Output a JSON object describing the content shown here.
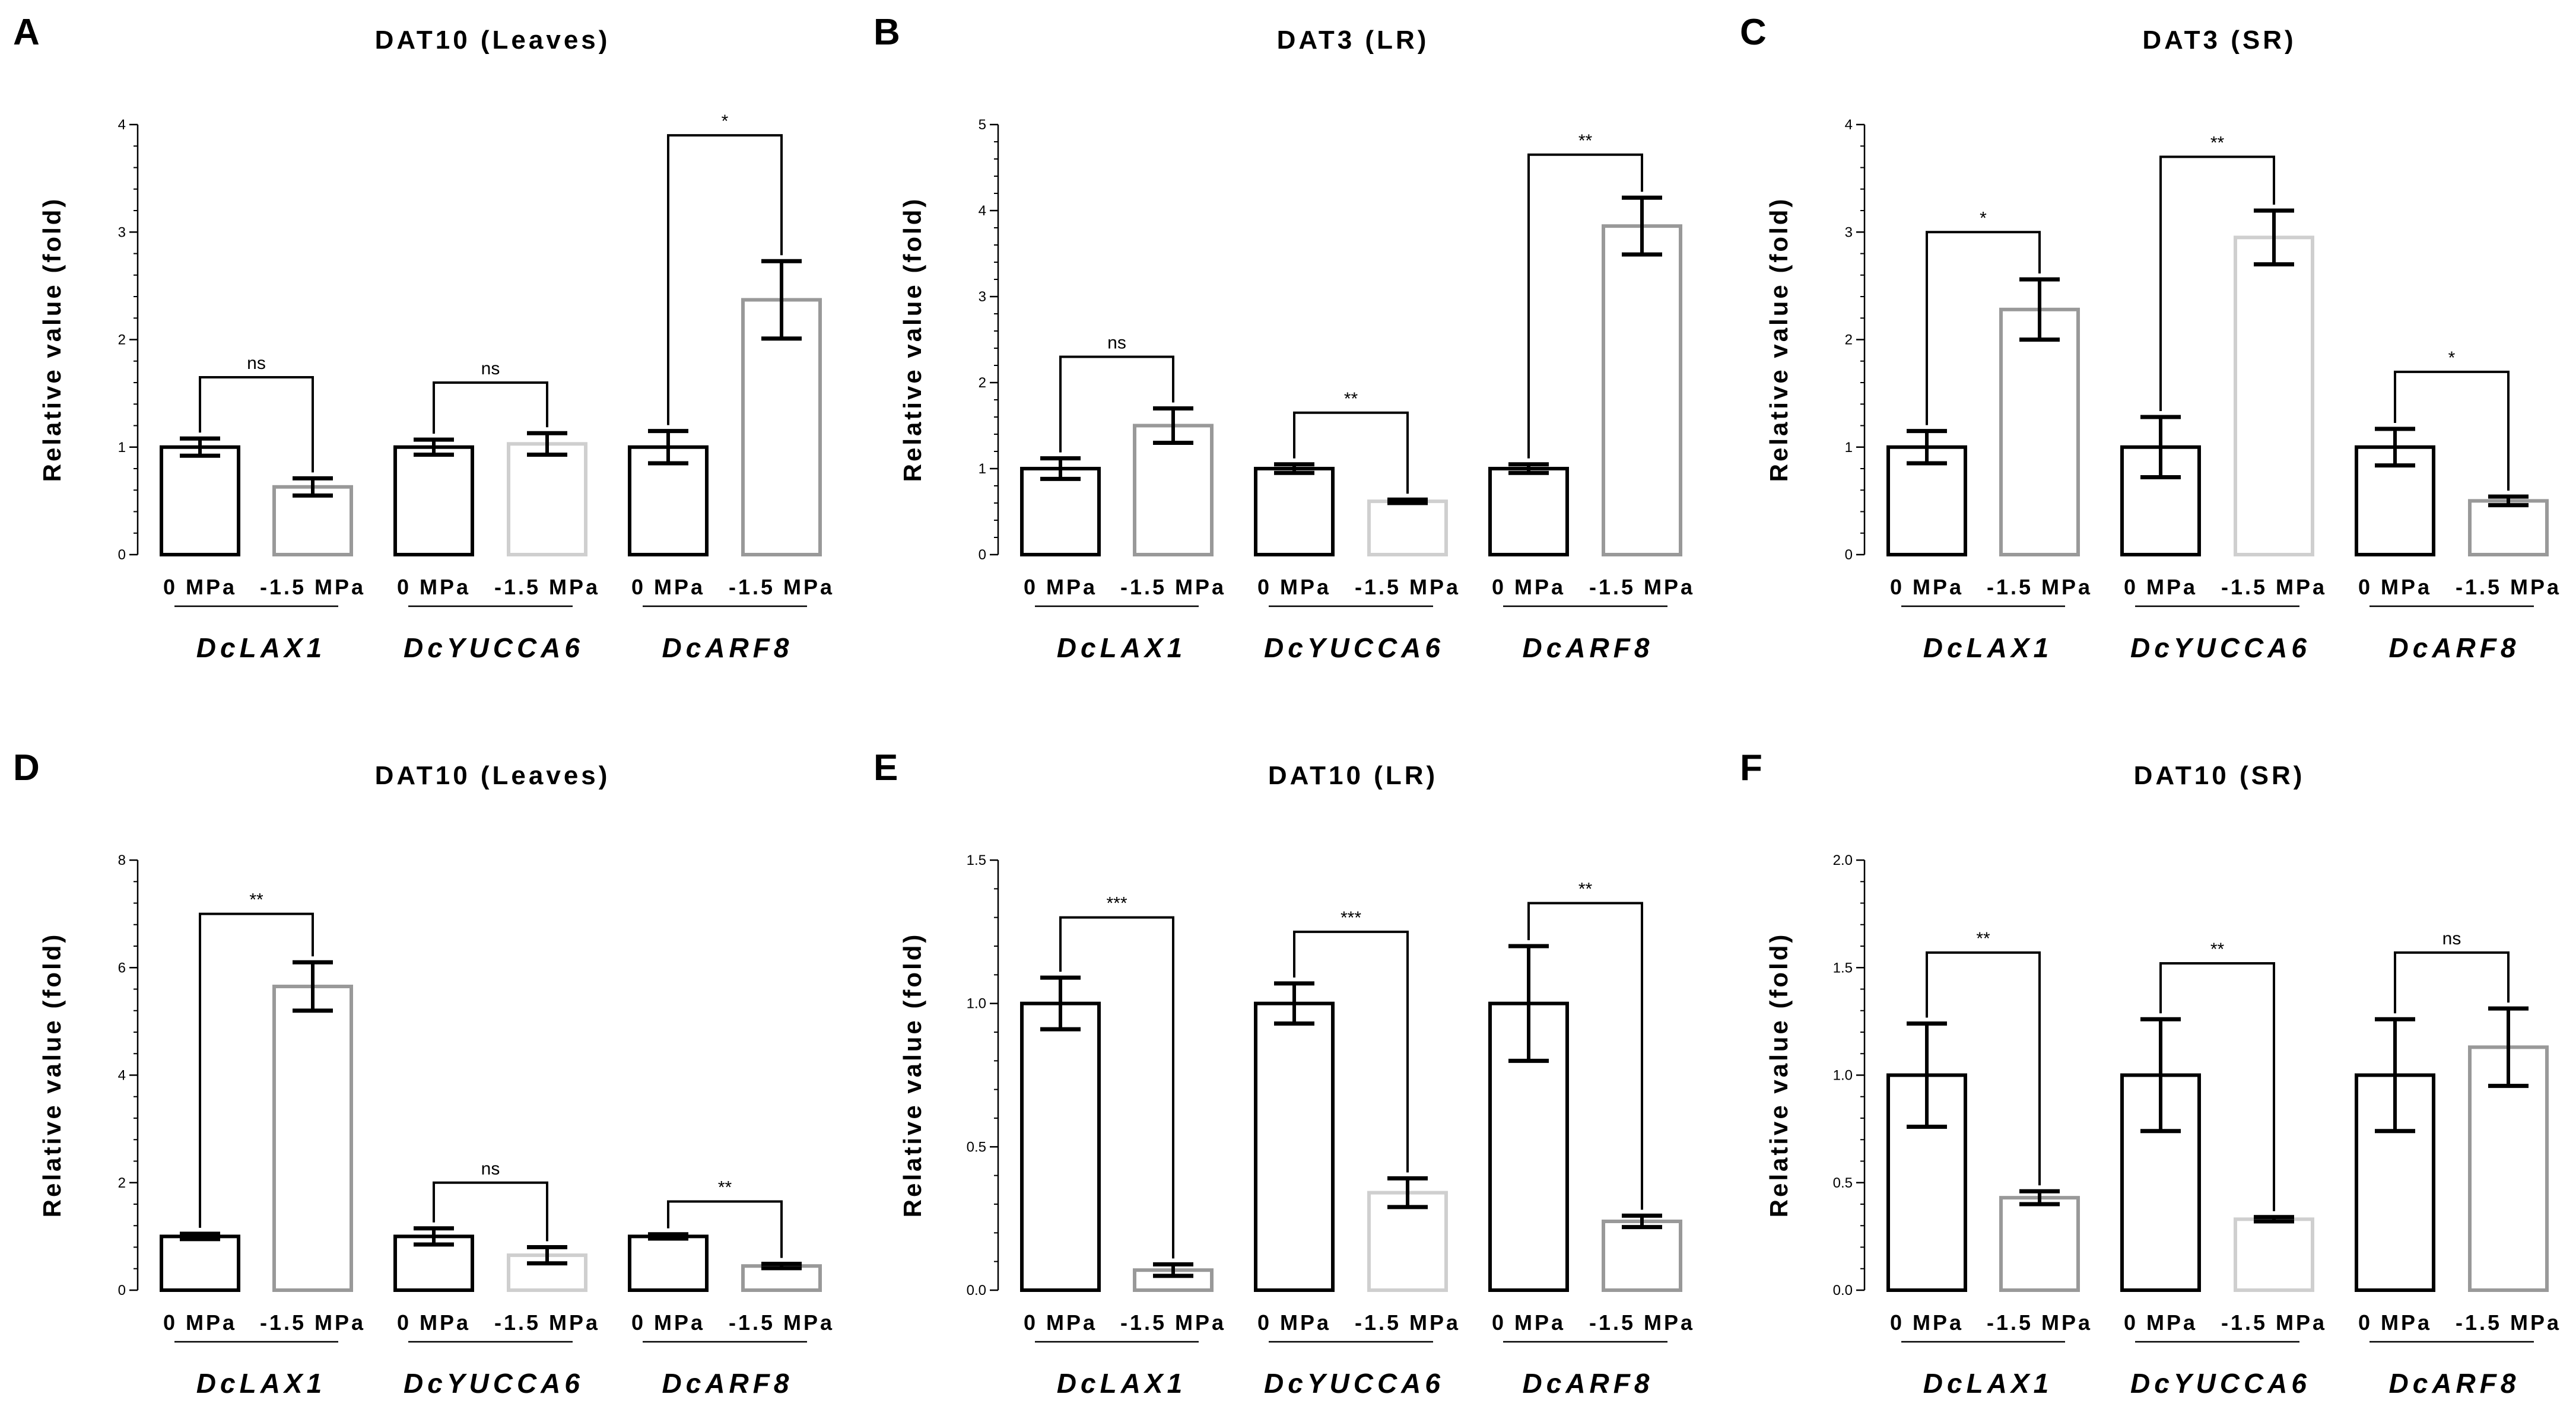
{
  "colors": {
    "control": "#000000",
    "gray": "#999999",
    "light": "#cfcfcf",
    "axis": "#000000"
  },
  "chart_data": [
    {
      "panel": "A",
      "title": "DAT10 (Leaves)",
      "type": "bar",
      "ylabel": "Relative value (fold)",
      "ylim": [
        0,
        4
      ],
      "yticks": [
        "0",
        "1",
        "2",
        "3",
        "4"
      ],
      "genes": [
        "DcLAX1",
        "DcYUCCA6",
        "DcARF8"
      ],
      "conditions": [
        "0 MPa",
        "-1.5 MPa"
      ],
      "bars": [
        {
          "value": 1.0,
          "error": 0.08,
          "color": "control"
        },
        {
          "value": 0.63,
          "error": 0.08,
          "color": "gray"
        },
        {
          "value": 1.0,
          "error": 0.07,
          "color": "control"
        },
        {
          "value": 1.03,
          "error": 0.1,
          "color": "light"
        },
        {
          "value": 1.0,
          "error": 0.15,
          "color": "control"
        },
        {
          "value": 2.37,
          "error": 0.36,
          "color": "gray"
        }
      ],
      "sig": [
        {
          "label": "ns",
          "y": 1.65
        },
        {
          "label": "ns",
          "y": 1.6
        },
        {
          "label": "*",
          "y": 3.9
        }
      ]
    },
    {
      "panel": "B",
      "title": "DAT3 (LR)",
      "type": "bar",
      "ylabel": "Relative value (fold)",
      "ylim": [
        0,
        5
      ],
      "yticks": [
        "0",
        "1",
        "2",
        "3",
        "4",
        "5"
      ],
      "genes": [
        "DcLAX1",
        "DcYUCCA6",
        "DcARF8"
      ],
      "conditions": [
        "0 MPa",
        "-1.5 MPa"
      ],
      "bars": [
        {
          "value": 1.0,
          "error": 0.12,
          "color": "control"
        },
        {
          "value": 1.5,
          "error": 0.2,
          "color": "gray"
        },
        {
          "value": 1.0,
          "error": 0.05,
          "color": "control"
        },
        {
          "value": 0.62,
          "error": 0.02,
          "color": "light"
        },
        {
          "value": 1.0,
          "error": 0.05,
          "color": "control"
        },
        {
          "value": 3.82,
          "error": 0.33,
          "color": "gray"
        }
      ],
      "sig": [
        {
          "label": "ns",
          "y": 2.3
        },
        {
          "label": "**",
          "y": 1.65
        },
        {
          "label": "**",
          "y": 4.65
        }
      ]
    },
    {
      "panel": "C",
      "title": "DAT3 (SR)",
      "type": "bar",
      "ylabel": "Relative value (fold)",
      "ylim": [
        0,
        4
      ],
      "yticks": [
        "0",
        "1",
        "2",
        "3",
        "4"
      ],
      "genes": [
        "DcLAX1",
        "DcYUCCA6",
        "DcARF8"
      ],
      "conditions": [
        "0 MPa",
        "-1.5 MPa"
      ],
      "bars": [
        {
          "value": 1.0,
          "error": 0.15,
          "color": "control"
        },
        {
          "value": 2.28,
          "error": 0.28,
          "color": "gray"
        },
        {
          "value": 1.0,
          "error": 0.28,
          "color": "control"
        },
        {
          "value": 2.95,
          "error": 0.25,
          "color": "light"
        },
        {
          "value": 1.0,
          "error": 0.17,
          "color": "control"
        },
        {
          "value": 0.5,
          "error": 0.04,
          "color": "gray"
        }
      ],
      "sig": [
        {
          "label": "*",
          "y": 3.0
        },
        {
          "label": "**",
          "y": 3.7
        },
        {
          "label": "*",
          "y": 1.7
        }
      ]
    },
    {
      "panel": "D",
      "title": "DAT10 (Leaves)",
      "type": "bar",
      "ylabel": "Relative value (fold)",
      "ylim": [
        0,
        8
      ],
      "yticks": [
        "0",
        "2",
        "4",
        "6",
        "8"
      ],
      "genes": [
        "DcLAX1",
        "DcYUCCA6",
        "DcARF8"
      ],
      "conditions": [
        "0 MPa",
        "-1.5 MPa"
      ],
      "bars": [
        {
          "value": 1.0,
          "error": 0.05,
          "color": "control"
        },
        {
          "value": 5.65,
          "error": 0.45,
          "color": "gray"
        },
        {
          "value": 1.0,
          "error": 0.15,
          "color": "control"
        },
        {
          "value": 0.65,
          "error": 0.15,
          "color": "light"
        },
        {
          "value": 1.0,
          "error": 0.04,
          "color": "control"
        },
        {
          "value": 0.45,
          "error": 0.04,
          "color": "gray"
        }
      ],
      "sig": [
        {
          "label": "**",
          "y": 7.0
        },
        {
          "label": "ns",
          "y": 2.0
        },
        {
          "label": "**",
          "y": 1.65
        }
      ]
    },
    {
      "panel": "E",
      "title": "DAT10 (LR)",
      "type": "bar",
      "ylabel": "Relative value (fold)",
      "ylim": [
        0,
        1.5
      ],
      "yticks": [
        "0.0",
        "0.5",
        "1.0",
        "1.5"
      ],
      "genes": [
        "DcLAX1",
        "DcYUCCA6",
        "DcARF8"
      ],
      "conditions": [
        "0 MPa",
        "-1.5 MPa"
      ],
      "bars": [
        {
          "value": 1.0,
          "error": 0.09,
          "color": "control"
        },
        {
          "value": 0.07,
          "error": 0.02,
          "color": "gray"
        },
        {
          "value": 1.0,
          "error": 0.07,
          "color": "control"
        },
        {
          "value": 0.34,
          "error": 0.05,
          "color": "light"
        },
        {
          "value": 1.0,
          "error": 0.2,
          "color": "control"
        },
        {
          "value": 0.24,
          "error": 0.02,
          "color": "gray"
        }
      ],
      "sig": [
        {
          "label": "***",
          "y": 1.3
        },
        {
          "label": "***",
          "y": 1.25
        },
        {
          "label": "**",
          "y": 1.35
        }
      ]
    },
    {
      "panel": "F",
      "title": "DAT10 (SR)",
      "type": "bar",
      "ylabel": "Relative value (fold)",
      "ylim": [
        0,
        2.0
      ],
      "yticks": [
        "0.0",
        "0.5",
        "1.0",
        "1.5",
        "2.0"
      ],
      "genes": [
        "DcLAX1",
        "DcYUCCA6",
        "DcARF8"
      ],
      "conditions": [
        "0 MPa",
        "-1.5 MPa"
      ],
      "bars": [
        {
          "value": 1.0,
          "error": 0.24,
          "color": "control"
        },
        {
          "value": 0.43,
          "error": 0.03,
          "color": "gray"
        },
        {
          "value": 1.0,
          "error": 0.26,
          "color": "control"
        },
        {
          "value": 0.33,
          "error": 0.01,
          "color": "light"
        },
        {
          "value": 1.0,
          "error": 0.26,
          "color": "control"
        },
        {
          "value": 1.13,
          "error": 0.18,
          "color": "gray"
        }
      ],
      "sig": [
        {
          "label": "**",
          "y": 1.57
        },
        {
          "label": "**",
          "y": 1.52
        },
        {
          "label": "ns",
          "y": 1.57
        }
      ]
    }
  ]
}
